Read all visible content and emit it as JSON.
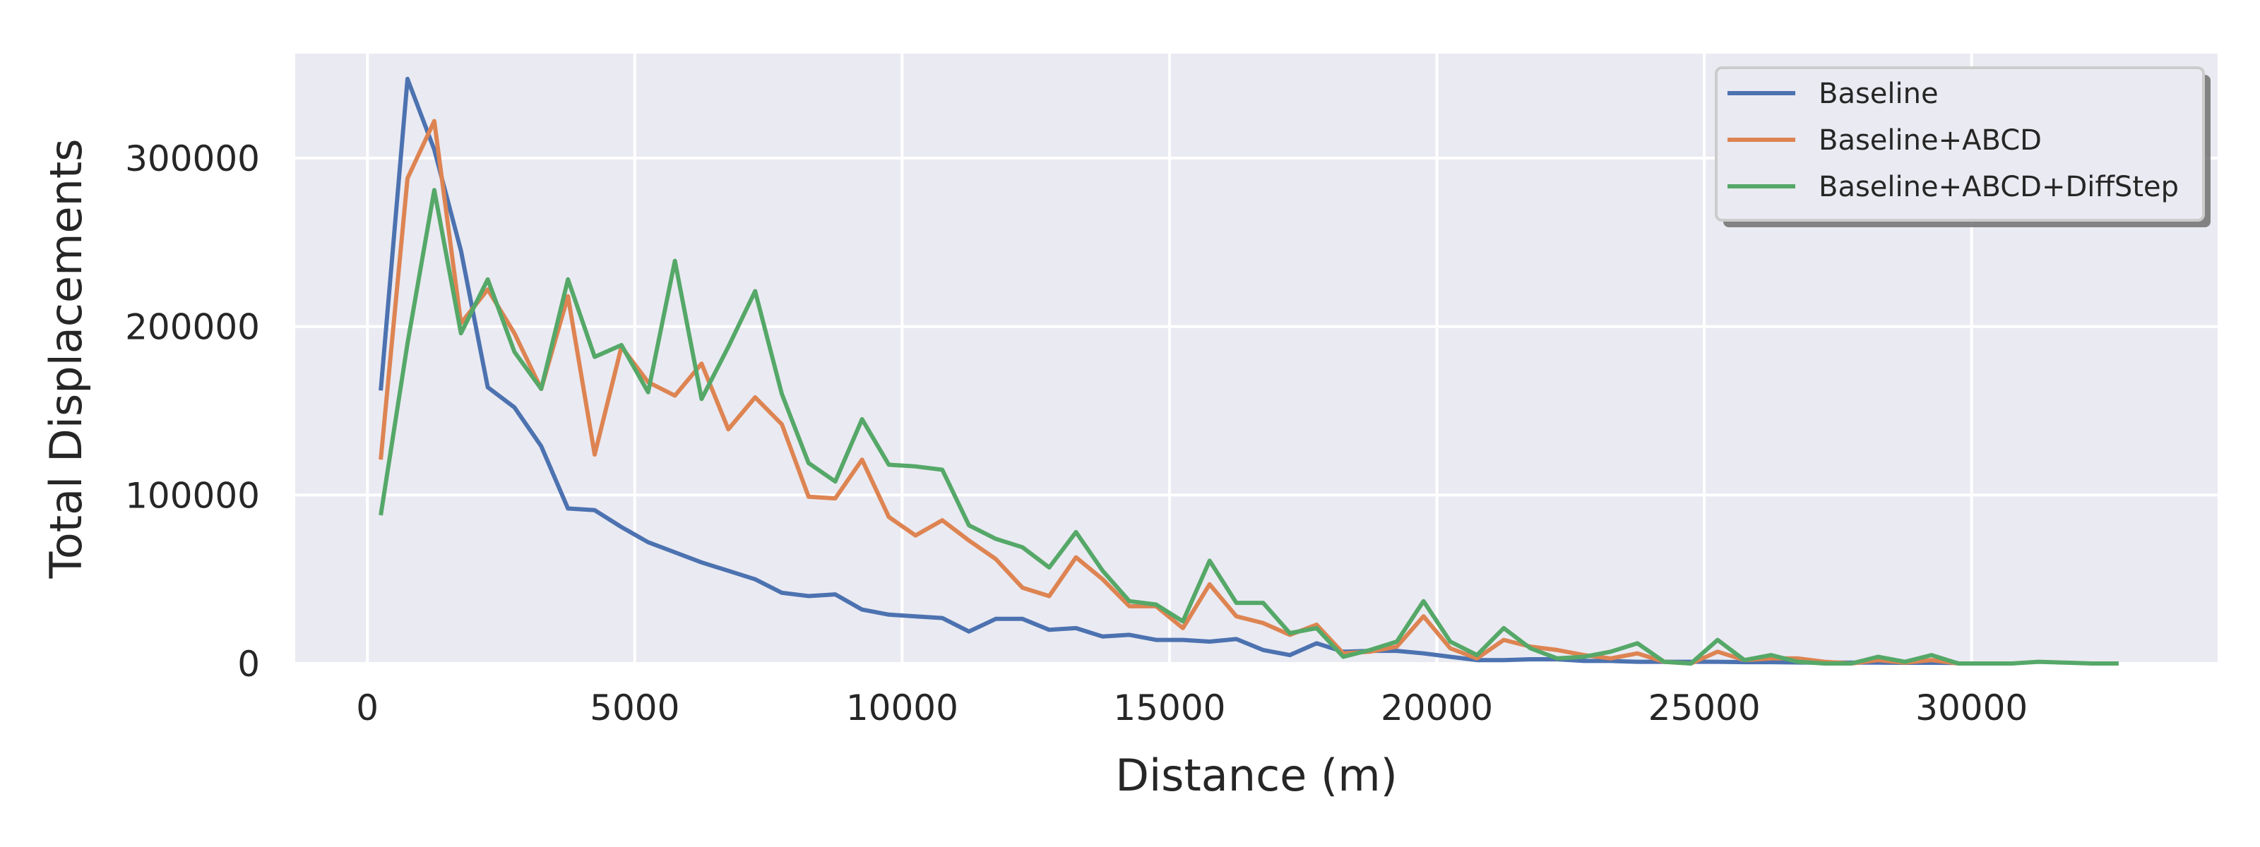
{
  "chart_data": {
    "type": "line",
    "title": "",
    "xlabel": "Distance (m)",
    "ylabel": "Total Displacements",
    "xlim": [
      -1350,
      34600
    ],
    "ylim": [
      0,
      362000
    ],
    "xticks": [
      0,
      5000,
      10000,
      15000,
      20000,
      25000,
      30000
    ],
    "yticks": [
      0,
      100000,
      200000,
      300000
    ],
    "grid": true,
    "legend_position": "top-right",
    "background": "#eaeaf2",
    "series": [
      {
        "name": "Baseline",
        "color": "#4c72b0",
        "points": [
          [
            250,
            162000
          ],
          [
            750,
            347000
          ],
          [
            1250,
            305000
          ],
          [
            1750,
            245000
          ],
          [
            2250,
            164000
          ],
          [
            2750,
            152000
          ],
          [
            3250,
            129000
          ],
          [
            3750,
            92000
          ],
          [
            4250,
            91000
          ],
          [
            4750,
            81000
          ],
          [
            5250,
            72000
          ],
          [
            5750,
            66000
          ],
          [
            6250,
            60000
          ],
          [
            6750,
            55000
          ],
          [
            7250,
            50000
          ],
          [
            7750,
            42000
          ],
          [
            8250,
            40000
          ],
          [
            8750,
            41000
          ],
          [
            9250,
            32000
          ],
          [
            9750,
            29000
          ],
          [
            10250,
            28000
          ],
          [
            10750,
            27000
          ],
          [
            11250,
            19000
          ],
          [
            11750,
            26500
          ],
          [
            12250,
            26500
          ],
          [
            12750,
            20000
          ],
          [
            13250,
            21000
          ],
          [
            13750,
            16000
          ],
          [
            14250,
            17000
          ],
          [
            14750,
            14000
          ],
          [
            15250,
            14000
          ],
          [
            15750,
            13000
          ],
          [
            16250,
            14500
          ],
          [
            16750,
            8000
          ],
          [
            17250,
            5000
          ],
          [
            17750,
            12000
          ],
          [
            18250,
            7000
          ],
          [
            18750,
            7500
          ],
          [
            19250,
            7500
          ],
          [
            19750,
            6000
          ],
          [
            20250,
            4000
          ],
          [
            20750,
            2000
          ],
          [
            21250,
            2000
          ],
          [
            21750,
            2500
          ],
          [
            22250,
            2500
          ],
          [
            22750,
            1500
          ],
          [
            23250,
            1500
          ],
          [
            23750,
            1000
          ],
          [
            24250,
            1000
          ],
          [
            24750,
            1000
          ],
          [
            25250,
            1000
          ],
          [
            25750,
            800
          ],
          [
            26250,
            800
          ],
          [
            26750,
            600
          ],
          [
            27250,
            500
          ],
          [
            27750,
            500
          ],
          [
            28250,
            500
          ],
          [
            28750,
            400
          ],
          [
            29250,
            400
          ],
          [
            29750,
            300
          ]
        ]
      },
      {
        "name": "Baseline+ABCD",
        "color": "#dd8452",
        "points": [
          [
            250,
            121000
          ],
          [
            750,
            288000
          ],
          [
            1250,
            322000
          ],
          [
            1750,
            202000
          ],
          [
            2250,
            222000
          ],
          [
            2750,
            196000
          ],
          [
            3250,
            163000
          ],
          [
            3750,
            218000
          ],
          [
            4250,
            124000
          ],
          [
            4750,
            188000
          ],
          [
            5250,
            167000
          ],
          [
            5750,
            159000
          ],
          [
            6250,
            178000
          ],
          [
            6750,
            139000
          ],
          [
            7250,
            158000
          ],
          [
            7750,
            142000
          ],
          [
            8250,
            99000
          ],
          [
            8750,
            98000
          ],
          [
            9250,
            121000
          ],
          [
            9750,
            87000
          ],
          [
            10250,
            76000
          ],
          [
            10750,
            85000
          ],
          [
            11250,
            73000
          ],
          [
            11750,
            62000
          ],
          [
            12250,
            45000
          ],
          [
            12750,
            40000
          ],
          [
            13250,
            63000
          ],
          [
            13750,
            50000
          ],
          [
            14250,
            34000
          ],
          [
            14750,
            34000
          ],
          [
            15250,
            21000
          ],
          [
            15750,
            47000
          ],
          [
            16250,
            28000
          ],
          [
            16750,
            24000
          ],
          [
            17250,
            17000
          ],
          [
            17750,
            23000
          ],
          [
            18250,
            6000
          ],
          [
            18750,
            7000
          ],
          [
            19250,
            10000
          ],
          [
            19750,
            28000
          ],
          [
            20250,
            9000
          ],
          [
            20750,
            3000
          ],
          [
            21250,
            14000
          ],
          [
            21750,
            10000
          ],
          [
            22250,
            8000
          ],
          [
            22750,
            5000
          ],
          [
            23250,
            3000
          ],
          [
            23750,
            6000
          ],
          [
            24250,
            1000
          ],
          [
            24750,
            0
          ],
          [
            25250,
            7000
          ],
          [
            25750,
            2000
          ],
          [
            26250,
            3000
          ],
          [
            26750,
            3000
          ],
          [
            27250,
            1000
          ],
          [
            27750,
            0
          ],
          [
            28250,
            2000
          ],
          [
            28750,
            500
          ],
          [
            29250,
            2000
          ],
          [
            29750,
            0
          ]
        ]
      },
      {
        "name": "Baseline+ABCD+DiffStep",
        "color": "#55a868",
        "points": [
          [
            250,
            88000
          ],
          [
            750,
            190000
          ],
          [
            1250,
            281000
          ],
          [
            1750,
            196000
          ],
          [
            2250,
            228000
          ],
          [
            2750,
            185000
          ],
          [
            3250,
            163000
          ],
          [
            3750,
            228000
          ],
          [
            4250,
            182000
          ],
          [
            4750,
            189000
          ],
          [
            5250,
            161000
          ],
          [
            5750,
            239000
          ],
          [
            6250,
            157000
          ],
          [
            6750,
            188000
          ],
          [
            7250,
            221000
          ],
          [
            7750,
            160000
          ],
          [
            8250,
            119000
          ],
          [
            8750,
            108000
          ],
          [
            9250,
            145000
          ],
          [
            9750,
            118000
          ],
          [
            10250,
            117000
          ],
          [
            10750,
            115000
          ],
          [
            11250,
            82000
          ],
          [
            11750,
            74000
          ],
          [
            12250,
            69000
          ],
          [
            12750,
            57000
          ],
          [
            13250,
            78000
          ],
          [
            13750,
            55000
          ],
          [
            14250,
            37000
          ],
          [
            14750,
            35000
          ],
          [
            15250,
            25000
          ],
          [
            15750,
            61000
          ],
          [
            16250,
            36000
          ],
          [
            16750,
            36000
          ],
          [
            17250,
            18000
          ],
          [
            17750,
            21000
          ],
          [
            18250,
            4000
          ],
          [
            18750,
            8000
          ],
          [
            19250,
            13000
          ],
          [
            19750,
            37000
          ],
          [
            20250,
            13000
          ],
          [
            20750,
            5000
          ],
          [
            21250,
            21000
          ],
          [
            21750,
            9000
          ],
          [
            22250,
            3000
          ],
          [
            22750,
            4000
          ],
          [
            23250,
            7000
          ],
          [
            23750,
            12000
          ],
          [
            24250,
            1000
          ],
          [
            24750,
            0
          ],
          [
            25250,
            14000
          ],
          [
            25750,
            2000
          ],
          [
            26250,
            5000
          ],
          [
            26750,
            1000
          ],
          [
            27250,
            0
          ],
          [
            27750,
            0
          ],
          [
            28250,
            4000
          ],
          [
            28750,
            1000
          ],
          [
            29250,
            5000
          ],
          [
            29750,
            0
          ],
          [
            30250,
            0
          ],
          [
            30750,
            0
          ],
          [
            31250,
            1000
          ],
          [
            31750,
            500
          ],
          [
            32250,
            0
          ],
          [
            32750,
            0
          ]
        ]
      }
    ]
  }
}
